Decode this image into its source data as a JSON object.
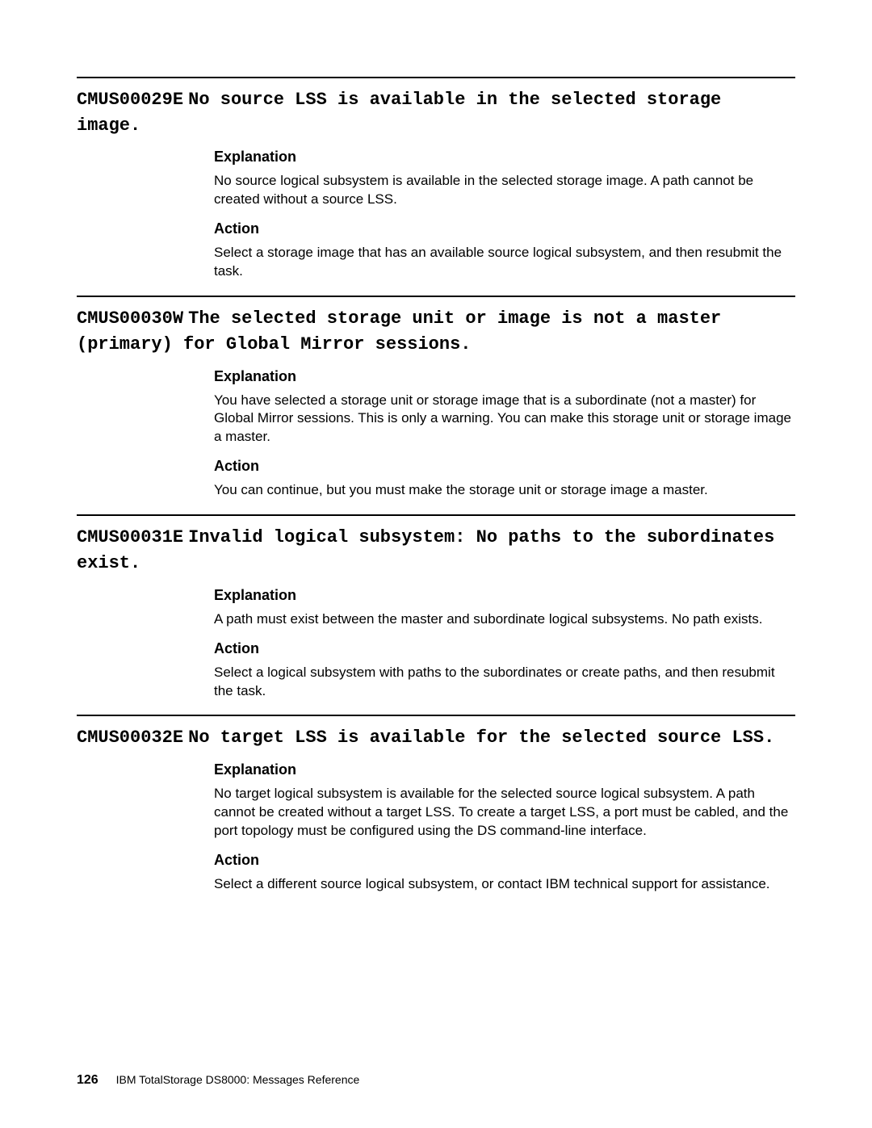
{
  "messages": [
    {
      "code": "CMUS00029E",
      "title": "No source LSS is available in the selected storage image.",
      "explanation_heading": "Explanation",
      "explanation": "No source logical subsystem is available in the selected storage image. A path cannot be created without a source LSS.",
      "action_heading": "Action",
      "action": "Select a storage image that has an available source logical subsystem, and then resubmit the task."
    },
    {
      "code": "CMUS00030W",
      "title": "The selected storage unit or image is not a master (primary) for Global Mirror sessions.",
      "explanation_heading": "Explanation",
      "explanation": "You have selected a storage unit or storage image that is a subordinate (not a master) for Global Mirror sessions. This is only a warning. You can make this storage unit or storage image a master.",
      "action_heading": "Action",
      "action": "You can continue, but you must make the storage unit or storage image a master."
    },
    {
      "code": "CMUS00031E",
      "title": "Invalid logical subsystem: No paths to the subordinates exist.",
      "explanation_heading": "Explanation",
      "explanation": "A path must exist between the master and subordinate logical subsystems. No path exists.",
      "action_heading": "Action",
      "action": "Select a logical subsystem with paths to the subordinates or create paths, and then resubmit the task."
    },
    {
      "code": "CMUS00032E",
      "title": "No target LSS is available for the selected source LSS.",
      "explanation_heading": "Explanation",
      "explanation": "No target logical subsystem is available for the selected source logical subsystem. A path cannot be created without a target LSS. To create a target LSS, a port must be cabled, and the port topology must be configured using the DS command-line interface.",
      "action_heading": "Action",
      "action": "Select a different source logical subsystem, or contact IBM technical support for assistance."
    }
  ],
  "footer": {
    "page_number": "126",
    "book_title": "IBM TotalStorage DS8000:  Messages Reference"
  }
}
